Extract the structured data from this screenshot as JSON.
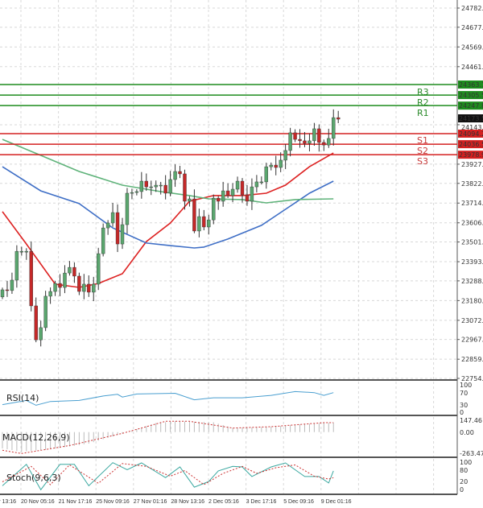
{
  "chart_data": {
    "type": "candlestick",
    "price_axis": {
      "range": [
        22754.0,
        24782.0
      ],
      "ticks": [
        "24782.0",
        "24677.0",
        "24569.0",
        "24461.0",
        "24143.0",
        "23927.0",
        "23822.0",
        "23714.0",
        "23606.0",
        "23501.0",
        "23393.0",
        "23288.0",
        "23180.0",
        "23072.0",
        "22967.0",
        "22859.0",
        "22754.0"
      ]
    },
    "current_price": "24173.5",
    "levels": [
      {
        "name": "R3",
        "value": 24363.1,
        "label": "24363.1",
        "color": "#1e8c1e"
      },
      {
        "name": "R2",
        "value": 24305.5,
        "label": "24305.5",
        "color": "#1e8c1e"
      },
      {
        "name": "R1",
        "value": 24247.8,
        "label": "24247.8",
        "color": "#1e8c1e"
      },
      {
        "name": "S1",
        "value": 24094.2,
        "label": "24094.2",
        "color": "#d42020"
      },
      {
        "name": "S2",
        "value": 24036.5,
        "label": "24036.5",
        "color": "#d42020"
      },
      {
        "name": "S3",
        "value": 23978.9,
        "label": "23978.9",
        "color": "#d42020"
      }
    ],
    "first_open": 23200,
    "closes": [
      23239,
      23235,
      23292,
      23450,
      23450,
      23450,
      23151,
      22965,
      23032,
      23204,
      23230,
      23274,
      23252,
      23331,
      23362,
      23314,
      23230,
      23270,
      23226,
      23270,
      23437,
      23578,
      23605,
      23662,
      23490,
      23596,
      23768,
      23772,
      23777,
      23834,
      23803,
      23803,
      23812,
      23812,
      23768,
      23843,
      23887,
      23874,
      23724,
      23737,
      23561,
      23640,
      23583,
      23622,
      23741,
      23724,
      23781,
      23755,
      23790,
      23834,
      23759,
      23724,
      23803,
      23830,
      23830,
      23913,
      23922,
      23909,
      23949,
      24002,
      24099,
      24063,
      24055,
      24041,
      24055,
      24121,
      24046,
      24032,
      24068,
      24182,
      24173.5
    ],
    "moving_averages": [
      {
        "color": "#dd2222",
        "points": [
          [
            0,
            23667
          ],
          [
            5,
            23490
          ],
          [
            11,
            23270
          ],
          [
            16,
            23252
          ],
          [
            20,
            23274
          ],
          [
            25,
            23327
          ],
          [
            30,
            23503
          ],
          [
            35,
            23605
          ],
          [
            39,
            23724
          ],
          [
            44,
            23755
          ],
          [
            50,
            23755
          ],
          [
            55,
            23768
          ],
          [
            59,
            23812
          ],
          [
            64,
            23913
          ],
          [
            69,
            23988
          ]
        ]
      },
      {
        "color": "#3f6fc6",
        "points": [
          [
            0,
            23913
          ],
          [
            8,
            23781
          ],
          [
            16,
            23711
          ],
          [
            23,
            23578
          ],
          [
            30,
            23495
          ],
          [
            35,
            23481
          ],
          [
            40,
            23468
          ],
          [
            42,
            23473
          ],
          [
            47,
            23517
          ],
          [
            54,
            23592
          ],
          [
            59,
            23680
          ],
          [
            64,
            23768
          ],
          [
            69,
            23834
          ]
        ]
      },
      {
        "color": "#5fb37a",
        "points": [
          [
            0,
            24063
          ],
          [
            8,
            23975
          ],
          [
            16,
            23887
          ],
          [
            25,
            23812
          ],
          [
            33,
            23777
          ],
          [
            39,
            23755
          ],
          [
            43,
            23737
          ],
          [
            50,
            23733
          ],
          [
            55,
            23715
          ],
          [
            61,
            23733
          ],
          [
            69,
            23737
          ]
        ]
      }
    ],
    "x_tick_labels": [
      "v 13:16",
      "20 Nov 05:16",
      "21 Nov 17:16",
      "25 Nov 09:16",
      "27 Nov 01:16",
      "28 Nov 13:16",
      "2 Dec 05:16",
      "3 Dec 17:16",
      "5 Dec 09:16",
      "9 Dec 01:16"
    ],
    "rsi": {
      "label": "RSI(14)",
      "ticks": [
        "100",
        "70",
        "30",
        "0"
      ],
      "color": "#4a9fd0",
      "points": [
        [
          0,
          34
        ],
        [
          5,
          46
        ],
        [
          7,
          32
        ],
        [
          10,
          43
        ],
        [
          16,
          46
        ],
        [
          21,
          59
        ],
        [
          24,
          64
        ],
        [
          25,
          56
        ],
        [
          28,
          65
        ],
        [
          36,
          67
        ],
        [
          40,
          48
        ],
        [
          44,
          54
        ],
        [
          50,
          54
        ],
        [
          56,
          61
        ],
        [
          61,
          72
        ],
        [
          65,
          69
        ],
        [
          67,
          61
        ],
        [
          69,
          69
        ]
      ]
    },
    "macd": {
      "label": "MACD(12,26,9)",
      "ticks": [
        "147.46",
        "0.00",
        "-263.47"
      ],
      "range": [
        -263.47,
        147.46
      ],
      "histogram_points": [
        [
          0,
          -200
        ],
        [
          4,
          -240
        ],
        [
          10,
          -210
        ],
        [
          18,
          -140
        ],
        [
          26,
          0
        ],
        [
          32,
          110
        ],
        [
          36,
          133
        ],
        [
          44,
          120
        ],
        [
          48,
          50
        ],
        [
          55,
          60
        ],
        [
          62,
          95
        ],
        [
          69,
          115
        ]
      ],
      "signal_points": [
        [
          0,
          -222
        ],
        [
          4,
          -262
        ],
        [
          14,
          -164
        ],
        [
          25,
          -16
        ],
        [
          34,
          132
        ],
        [
          39,
          132
        ],
        [
          48,
          49
        ],
        [
          56,
          66
        ],
        [
          67,
          115
        ],
        [
          69,
          115
        ]
      ],
      "signal_color": "#cc3333"
    },
    "stoch": {
      "label": "Stoch(9,6,3)",
      "ticks": [
        "100",
        "80",
        "20",
        "0"
      ],
      "k_color": "#3aa8a0",
      "d_color": "#cc3333",
      "k_points": [
        [
          0,
          16
        ],
        [
          5,
          92
        ],
        [
          8,
          2
        ],
        [
          12,
          92
        ],
        [
          15,
          92
        ],
        [
          18,
          16
        ],
        [
          23,
          98
        ],
        [
          26,
          73
        ],
        [
          29,
          97
        ],
        [
          34,
          45
        ],
        [
          37,
          83
        ],
        [
          40,
          11
        ],
        [
          43,
          31
        ],
        [
          45,
          69
        ],
        [
          48,
          85
        ],
        [
          50,
          83
        ],
        [
          52,
          49
        ],
        [
          56,
          83
        ],
        [
          59,
          97
        ],
        [
          63,
          49
        ],
        [
          66,
          49
        ],
        [
          68,
          26
        ],
        [
          69,
          69
        ]
      ],
      "d_points": [
        [
          0,
          30
        ],
        [
          6,
          85
        ],
        [
          10,
          20
        ],
        [
          14,
          90
        ],
        [
          20,
          25
        ],
        [
          25,
          95
        ],
        [
          30,
          85
        ],
        [
          35,
          50
        ],
        [
          38,
          70
        ],
        [
          42,
          20
        ],
        [
          46,
          60
        ],
        [
          50,
          85
        ],
        [
          53,
          60
        ],
        [
          57,
          80
        ],
        [
          61,
          90
        ],
        [
          65,
          50
        ],
        [
          68,
          40
        ],
        [
          69,
          45
        ]
      ]
    },
    "colors": {
      "bull": "#5aa66e",
      "bear": "#c42828",
      "grid": "#d8d8d8"
    }
  }
}
